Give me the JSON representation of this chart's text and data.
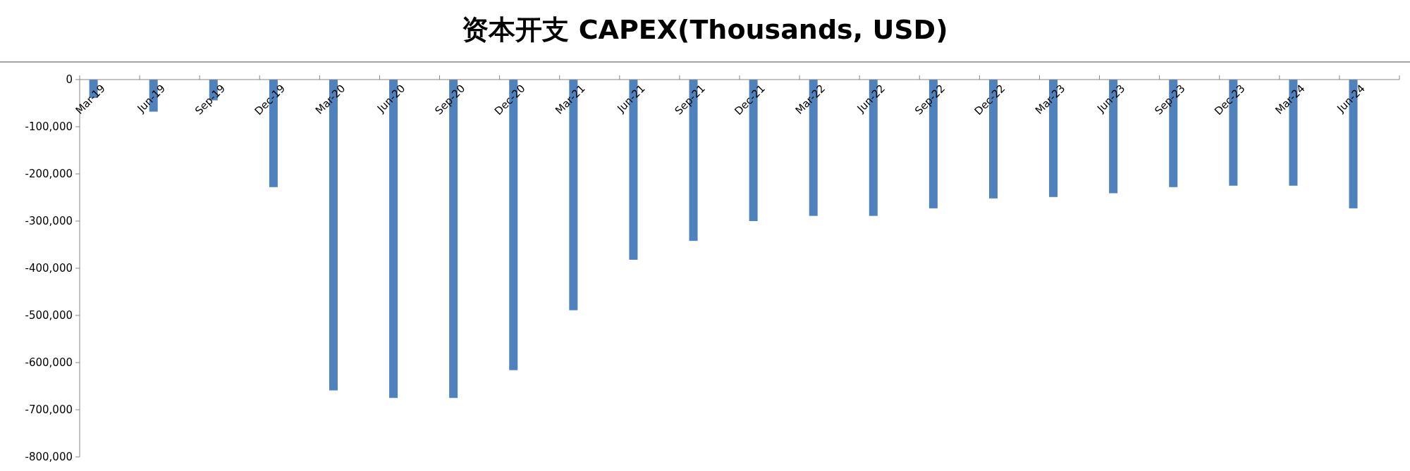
{
  "chart_data": {
    "type": "bar",
    "title": "资本开支 CAPEX(Thousands, USD)",
    "categories": [
      "Mar-19",
      "Jun-19",
      "Sep-19",
      "Dec-19",
      "Mar-20",
      "Jun-20",
      "Sep-20",
      "Dec-20",
      "Mar-21",
      "Jun-21",
      "Sep-21",
      "Dec-21",
      "Mar-22",
      "Jun-22",
      "Sep-22",
      "Dec-22",
      "Mar-23",
      "Jun-23",
      "Sep-23",
      "Dec-23",
      "Mar-24",
      "Jun-24"
    ],
    "values": [
      -39000,
      -68000,
      -44000,
      -228000,
      -659000,
      -675000,
      -675000,
      -616000,
      -489000,
      -382000,
      -342000,
      -300000,
      -289000,
      -289000,
      -273000,
      -252000,
      -249000,
      -241000,
      -228000,
      -225000,
      -225000,
      -273000
    ],
    "color": "#4f81bd",
    "ylim": [
      -800000,
      0
    ],
    "yticks": [
      {
        "value": 0,
        "label": "0"
      },
      {
        "value": -100000,
        "label": "-100,000"
      },
      {
        "value": -200000,
        "label": "-200,000"
      },
      {
        "value": -300000,
        "label": "-300,000"
      },
      {
        "value": -400000,
        "label": "-400,000"
      },
      {
        "value": -500000,
        "label": "-500,000"
      },
      {
        "value": -600000,
        "label": "-600,000"
      },
      {
        "value": -700000,
        "label": "-700,000"
      },
      {
        "value": -800000,
        "label": "-800,000"
      }
    ]
  }
}
